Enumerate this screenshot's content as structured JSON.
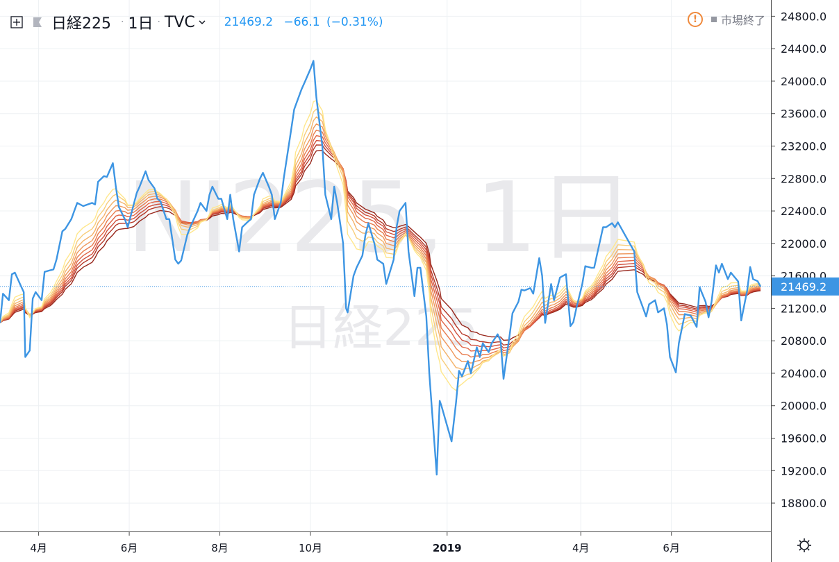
{
  "header": {
    "symbol": "日経225",
    "interval": "1日",
    "exchange": "TVC",
    "last": "21469.2",
    "change": "−66.1",
    "change_pct": "(−0.31%)",
    "market_status": "市場終了"
  },
  "watermark": {
    "symbol": "NI225, 1日",
    "name": "日経225"
  },
  "colors": {
    "price_line": "#3d95e3",
    "ribbon": [
      "#ffe78c",
      "#f8cd7a",
      "#f4b269",
      "#ef975b",
      "#e87c4e",
      "#e06446",
      "#d04f3d",
      "#b53828",
      "#98271c"
    ],
    "grid": "#edf0f3",
    "axis": "#4a4a4a",
    "last_label": "#3d95e3",
    "warning": "#ef8a3d"
  },
  "icons": {
    "plus": "plus-square-icon",
    "flag": "flag-icon",
    "chevron": "chevron-down-icon",
    "warning": "exclamation-circle-icon",
    "status": "square-icon",
    "settings": "gear-icon"
  },
  "chart_data": {
    "type": "line",
    "x_type": "date",
    "x_ticks": [
      {
        "date": "2018-04-01",
        "label": "4月"
      },
      {
        "date": "2018-06-01",
        "label": "6月"
      },
      {
        "date": "2018-08-01",
        "label": "8月"
      },
      {
        "date": "2018-10-01",
        "label": "10月"
      },
      {
        "date": "2019-01-01",
        "label": "2019"
      },
      {
        "date": "2019-04-01",
        "label": "4月"
      },
      {
        "date": "2019-06-01",
        "label": "6月"
      }
    ],
    "ylim": [
      18450,
      25000
    ],
    "y_ticks": [
      18800.0,
      19200.0,
      19600.0,
      20000.0,
      20400.0,
      20800.0,
      21200.0,
      21600.0,
      22000.0,
      22400.0,
      22800.0,
      23200.0,
      23600.0,
      24000.0,
      24400.0,
      24800.0
    ],
    "last_value": 21469.2,
    "series": [
      {
        "values": [
          [
            "2018-03-06",
            21020
          ],
          [
            "2018-03-08",
            21380
          ],
          [
            "2018-03-12",
            21300
          ],
          [
            "2018-03-14",
            21620
          ],
          [
            "2018-03-16",
            21640
          ],
          [
            "2018-03-20",
            21480
          ],
          [
            "2018-03-22",
            21400
          ],
          [
            "2018-03-23",
            20600
          ],
          [
            "2018-03-26",
            20680
          ],
          [
            "2018-03-28",
            21320
          ],
          [
            "2018-03-30",
            21400
          ],
          [
            "2018-04-03",
            21300
          ],
          [
            "2018-04-05",
            21650
          ],
          [
            "2018-04-09",
            21670
          ],
          [
            "2018-04-11",
            21680
          ],
          [
            "2018-04-13",
            21800
          ],
          [
            "2018-04-17",
            22150
          ],
          [
            "2018-04-19",
            22180
          ],
          [
            "2018-04-23",
            22300
          ],
          [
            "2018-04-25",
            22400
          ],
          [
            "2018-04-27",
            22500
          ],
          [
            "2018-05-01",
            22460
          ],
          [
            "2018-05-07",
            22500
          ],
          [
            "2018-05-09",
            22480
          ],
          [
            "2018-05-11",
            22760
          ],
          [
            "2018-05-15",
            22830
          ],
          [
            "2018-05-17",
            22820
          ],
          [
            "2018-05-21",
            22990
          ],
          [
            "2018-05-23",
            22700
          ],
          [
            "2018-05-25",
            22450
          ],
          [
            "2018-05-29",
            22300
          ],
          [
            "2018-05-31",
            22200
          ],
          [
            "2018-06-04",
            22480
          ],
          [
            "2018-06-06",
            22620
          ],
          [
            "2018-06-08",
            22700
          ],
          [
            "2018-06-12",
            22890
          ],
          [
            "2018-06-14",
            22780
          ],
          [
            "2018-06-18",
            22680
          ],
          [
            "2018-06-20",
            22550
          ],
          [
            "2018-06-22",
            22520
          ],
          [
            "2018-06-26",
            22300
          ],
          [
            "2018-06-28",
            22300
          ],
          [
            "2018-07-02",
            21800
          ],
          [
            "2018-07-04",
            21750
          ],
          [
            "2018-07-06",
            21790
          ],
          [
            "2018-07-10",
            22100
          ],
          [
            "2018-07-12",
            22200
          ],
          [
            "2018-07-17",
            22400
          ],
          [
            "2018-07-19",
            22500
          ],
          [
            "2018-07-23",
            22400
          ],
          [
            "2018-07-25",
            22600
          ],
          [
            "2018-07-27",
            22700
          ],
          [
            "2018-07-31",
            22550
          ],
          [
            "2018-08-02",
            22550
          ],
          [
            "2018-08-06",
            22300
          ],
          [
            "2018-08-08",
            22600
          ],
          [
            "2018-08-10",
            22300
          ],
          [
            "2018-08-14",
            21900
          ],
          [
            "2018-08-16",
            22200
          ],
          [
            "2018-08-20",
            22270
          ],
          [
            "2018-08-22",
            22300
          ],
          [
            "2018-08-24",
            22600
          ],
          [
            "2018-08-28",
            22800
          ],
          [
            "2018-08-30",
            22870
          ],
          [
            "2018-09-03",
            22700
          ],
          [
            "2018-09-05",
            22600
          ],
          [
            "2018-09-07",
            22300
          ],
          [
            "2018-09-11",
            22500
          ],
          [
            "2018-09-13",
            22800
          ],
          [
            "2018-09-18",
            23400
          ],
          [
            "2018-09-20",
            23650
          ],
          [
            "2018-09-21",
            23700
          ],
          [
            "2018-09-25",
            23900
          ],
          [
            "2018-09-27",
            23980
          ],
          [
            "2018-10-01",
            24150
          ],
          [
            "2018-10-03",
            24250
          ],
          [
            "2018-10-05",
            23800
          ],
          [
            "2018-10-09",
            23200
          ],
          [
            "2018-10-11",
            22600
          ],
          [
            "2018-10-15",
            22300
          ],
          [
            "2018-10-17",
            22700
          ],
          [
            "2018-10-19",
            22500
          ],
          [
            "2018-10-23",
            22000
          ],
          [
            "2018-10-25",
            21200
          ],
          [
            "2018-10-26",
            21150
          ],
          [
            "2018-10-30",
            21600
          ],
          [
            "2018-11-01",
            21700
          ],
          [
            "2018-11-05",
            21850
          ],
          [
            "2018-11-07",
            22100
          ],
          [
            "2018-11-09",
            22250
          ],
          [
            "2018-11-13",
            22000
          ],
          [
            "2018-11-15",
            21800
          ],
          [
            "2018-11-19",
            21750
          ],
          [
            "2018-11-21",
            21500
          ],
          [
            "2018-11-26",
            21800
          ],
          [
            "2018-11-28",
            22200
          ],
          [
            "2018-11-30",
            22400
          ],
          [
            "2018-12-04",
            22500
          ],
          [
            "2018-12-06",
            21900
          ],
          [
            "2018-12-10",
            21350
          ],
          [
            "2018-12-12",
            21700
          ],
          [
            "2018-12-14",
            21700
          ],
          [
            "2018-12-18",
            21100
          ],
          [
            "2018-12-20",
            20400
          ],
          [
            "2018-12-21",
            20150
          ],
          [
            "2018-12-25",
            19150
          ],
          [
            "2018-12-27",
            20060
          ],
          [
            "2018-12-28",
            20010
          ],
          [
            "2019-01-04",
            19560
          ],
          [
            "2019-01-07",
            20040
          ],
          [
            "2019-01-09",
            20430
          ],
          [
            "2019-01-11",
            20360
          ],
          [
            "2019-01-15",
            20550
          ],
          [
            "2019-01-17",
            20400
          ],
          [
            "2019-01-21",
            20720
          ],
          [
            "2019-01-23",
            20600
          ],
          [
            "2019-01-25",
            20770
          ],
          [
            "2019-01-29",
            20660
          ],
          [
            "2019-01-31",
            20770
          ],
          [
            "2019-02-04",
            20880
          ],
          [
            "2019-02-06",
            20800
          ],
          [
            "2019-02-08",
            20330
          ],
          [
            "2019-02-12",
            20860
          ],
          [
            "2019-02-14",
            21140
          ],
          [
            "2019-02-18",
            21280
          ],
          [
            "2019-02-20",
            21430
          ],
          [
            "2019-02-22",
            21420
          ],
          [
            "2019-02-26",
            21450
          ],
          [
            "2019-02-28",
            21380
          ],
          [
            "2019-03-04",
            21820
          ],
          [
            "2019-03-06",
            21600
          ],
          [
            "2019-03-08",
            21020
          ],
          [
            "2019-03-12",
            21500
          ],
          [
            "2019-03-14",
            21300
          ],
          [
            "2019-03-18",
            21580
          ],
          [
            "2019-03-20",
            21600
          ],
          [
            "2019-03-22",
            21620
          ],
          [
            "2019-03-25",
            20980
          ],
          [
            "2019-03-27",
            21030
          ],
          [
            "2019-03-29",
            21200
          ],
          [
            "2019-04-02",
            21500
          ],
          [
            "2019-04-04",
            21720
          ],
          [
            "2019-04-08",
            21700
          ],
          [
            "2019-04-10",
            21700
          ],
          [
            "2019-04-12",
            21870
          ],
          [
            "2019-04-16",
            22200
          ],
          [
            "2019-04-18",
            22200
          ],
          [
            "2019-04-22",
            22250
          ],
          [
            "2019-04-24",
            22200
          ],
          [
            "2019-04-26",
            22260
          ],
          [
            "2019-05-07",
            21900
          ],
          [
            "2019-05-09",
            21400
          ],
          [
            "2019-05-13",
            21200
          ],
          [
            "2019-05-15",
            21100
          ],
          [
            "2019-05-17",
            21250
          ],
          [
            "2019-05-21",
            21300
          ],
          [
            "2019-05-23",
            21150
          ],
          [
            "2019-05-27",
            21200
          ],
          [
            "2019-05-29",
            21000
          ],
          [
            "2019-05-31",
            20600
          ],
          [
            "2019-06-04",
            20410
          ],
          [
            "2019-06-06",
            20770
          ],
          [
            "2019-06-10",
            21130
          ],
          [
            "2019-06-12",
            21120
          ],
          [
            "2019-06-14",
            21110
          ],
          [
            "2019-06-18",
            20970
          ],
          [
            "2019-06-20",
            21460
          ],
          [
            "2019-06-24",
            21280
          ],
          [
            "2019-06-26",
            21090
          ],
          [
            "2019-06-28",
            21280
          ],
          [
            "2019-07-01",
            21730
          ],
          [
            "2019-07-03",
            21640
          ],
          [
            "2019-07-05",
            21750
          ],
          [
            "2019-07-09",
            21560
          ],
          [
            "2019-07-11",
            21640
          ],
          [
            "2019-07-16",
            21530
          ],
          [
            "2019-07-18",
            21050
          ],
          [
            "2019-07-22",
            21420
          ],
          [
            "2019-07-24",
            21710
          ],
          [
            "2019-07-26",
            21560
          ],
          [
            "2019-07-29",
            21535
          ],
          [
            "2019-07-31",
            21469.2
          ]
        ]
      }
    ]
  }
}
